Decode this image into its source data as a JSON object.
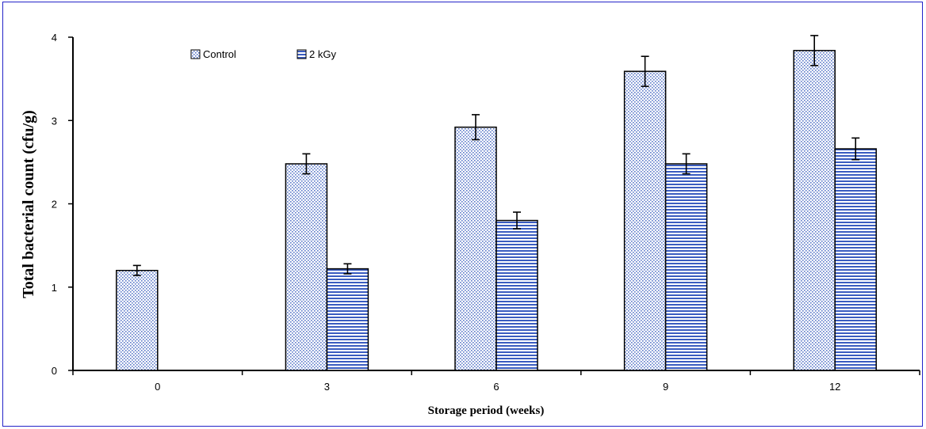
{
  "chart_data": {
    "type": "bar",
    "categories": [
      "0",
      "3",
      "6",
      "9",
      "12"
    ],
    "series": [
      {
        "name": "Control",
        "values": [
          1.2,
          2.48,
          2.92,
          3.59,
          3.84
        ],
        "errors": [
          0.06,
          0.12,
          0.15,
          0.18,
          0.18
        ],
        "color": "#5a78c8",
        "pattern": "dotted-vertical"
      },
      {
        "name": "2 kGy",
        "values": [
          null,
          1.22,
          1.8,
          2.48,
          2.66
        ],
        "errors": [
          null,
          0.06,
          0.1,
          0.12,
          0.13
        ],
        "color": "#3a5cc0",
        "pattern": "horizontal-stripes"
      }
    ],
    "ylabel": "Total bacterial count (cfu/g)",
    "xlabel": "Storage period  (weeks)",
    "ylim": [
      0,
      4
    ],
    "yticks": [
      "0",
      "1",
      "2",
      "3",
      "4"
    ],
    "grid": false,
    "legend_position": "top-left"
  },
  "colors": {
    "frame_border": "#2323c8",
    "axis": "#000000"
  }
}
